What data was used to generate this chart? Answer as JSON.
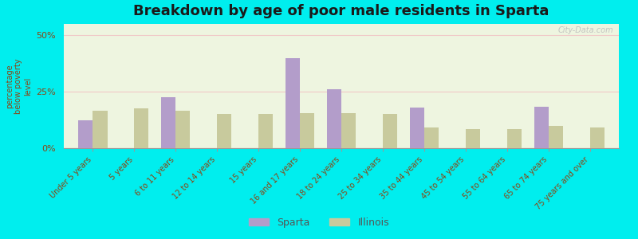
{
  "title": "Breakdown by age of poor male residents in Sparta",
  "categories": [
    "Under 5 years",
    "5 years",
    "6 to 11 years",
    "12 to 14 years",
    "15 years",
    "16 and 17 years",
    "18 to 24 years",
    "25 to 34 years",
    "35 to 44 years",
    "45 to 54 years",
    "55 to 64 years",
    "65 to 74 years",
    "75 years and over"
  ],
  "sparta_values": [
    12.5,
    0,
    22.5,
    0,
    0,
    40.0,
    26.0,
    0,
    18.0,
    0,
    0,
    18.5,
    0
  ],
  "illinois_values": [
    16.5,
    17.5,
    16.5,
    15.0,
    15.0,
    15.5,
    15.5,
    15.0,
    9.0,
    8.5,
    8.5,
    10.0,
    9.0
  ],
  "sparta_color": "#b39dca",
  "illinois_color": "#c8ca9d",
  "ylabel": "percentage\nbelow poverty\nlevel",
  "yticks": [
    0,
    25,
    50
  ],
  "ytick_labels": [
    "0%",
    "25%",
    "50%"
  ],
  "ylim": [
    0,
    55
  ],
  "plot_bg": "#eef5e0",
  "outer_bg": "#00eeee",
  "watermark": "City-Data.com"
}
